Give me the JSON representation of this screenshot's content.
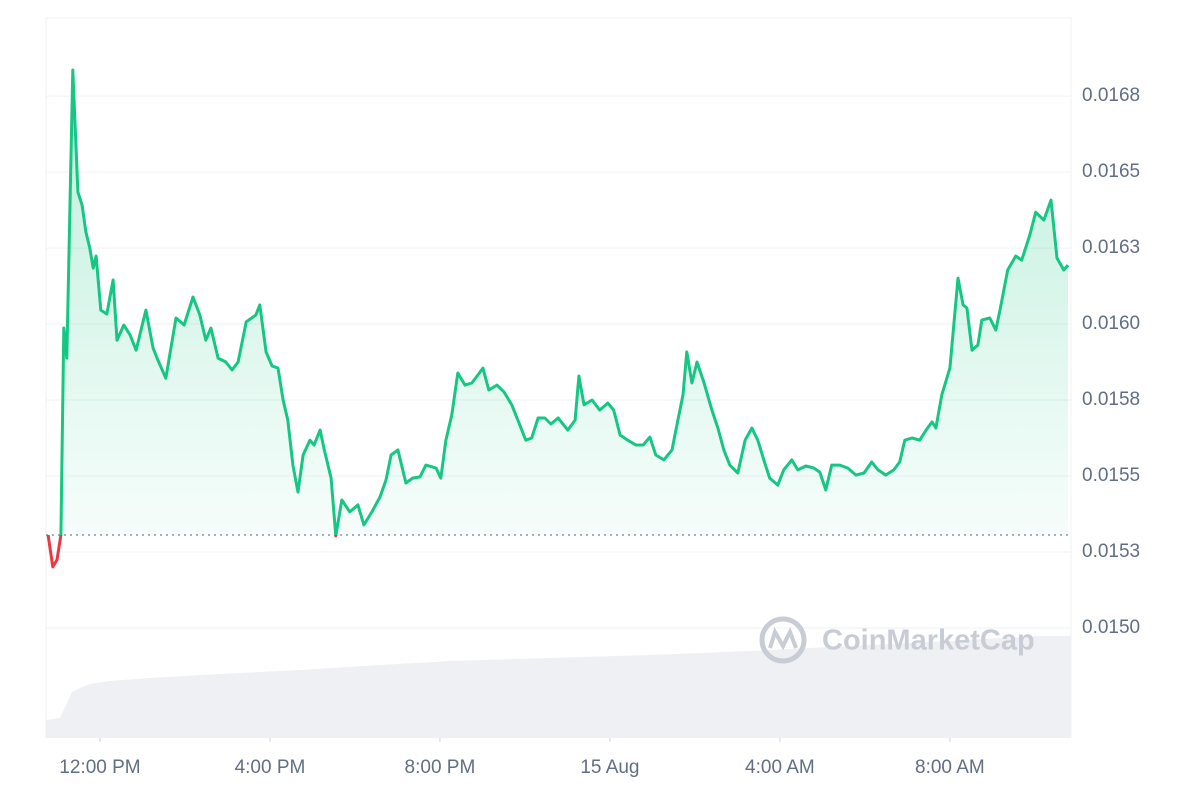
{
  "chart_data": {
    "type": "line",
    "watermark": "CoinMarketCap",
    "x": [
      -1.22,
      -1.11,
      -1.01,
      -0.92,
      -0.85,
      -0.78,
      -0.64,
      -0.52,
      -0.42,
      -0.33,
      -0.24,
      -0.16,
      -0.09,
      0.02,
      0.16,
      0.31,
      0.4,
      0.56,
      0.71,
      0.85,
      1.08,
      1.25,
      1.36,
      1.55,
      1.79,
      1.98,
      2.19,
      2.35,
      2.49,
      2.61,
      2.78,
      2.96,
      3.11,
      3.25,
      3.44,
      3.67,
      3.76,
      3.91,
      4.05,
      4.19,
      4.31,
      4.42,
      4.54,
      4.66,
      4.78,
      4.94,
      5.04,
      5.18,
      5.27,
      5.44,
      5.55,
      5.69,
      5.88,
      6.07,
      6.21,
      6.4,
      6.59,
      6.73,
      6.85,
      7.01,
      7.2,
      7.36,
      7.53,
      7.67,
      7.91,
      8.02,
      8.14,
      8.28,
      8.42,
      8.59,
      8.75,
      8.89,
      9.01,
      9.15,
      9.34,
      9.51,
      9.69,
      9.88,
      10.02,
      10.16,
      10.31,
      10.47,
      10.61,
      10.78,
      11.01,
      11.18,
      11.27,
      11.39,
      11.58,
      11.76,
      11.95,
      12.09,
      12.24,
      12.42,
      12.61,
      12.78,
      12.94,
      13.08,
      13.27,
      13.46,
      13.6,
      13.72,
      13.81,
      13.93,
      14.05,
      14.21,
      14.4,
      14.54,
      14.68,
      14.82,
      15.01,
      15.18,
      15.34,
      15.48,
      15.62,
      15.76,
      15.95,
      16.09,
      16.28,
      16.42,
      16.61,
      16.8,
      16.94,
      17.08,
      17.22,
      17.41,
      17.6,
      17.79,
      17.98,
      18.16,
      18.31,
      18.49,
      18.68,
      18.82,
      18.94,
      19.11,
      19.29,
      19.44,
      19.58,
      19.67,
      19.81,
      20.0,
      20.19,
      20.31,
      20.4,
      20.52,
      20.66,
      20.75,
      20.94,
      21.08,
      21.18,
      21.36,
      21.55,
      21.69,
      21.88,
      22.02,
      22.21,
      22.38,
      22.52,
      22.68,
      22.78
    ],
    "series": [
      {
        "color": "#16c784",
        "below_color": "#ea3943",
        "values": [
          0.015306,
          0.015201,
          0.015224,
          0.015306,
          0.015987,
          0.015888,
          0.016836,
          0.016434,
          0.016391,
          0.016303,
          0.01625,
          0.016184,
          0.016224,
          0.016046,
          0.016033,
          0.016145,
          0.015947,
          0.015997,
          0.015964,
          0.015914,
          0.016046,
          0.015921,
          0.015882,
          0.015822,
          0.01602,
          0.015997,
          0.016089,
          0.01603,
          0.015947,
          0.015987,
          0.015888,
          0.015875,
          0.015849,
          0.015875,
          0.016007,
          0.01603,
          0.016063,
          0.015908,
          0.015862,
          0.015855,
          0.01575,
          0.015684,
          0.015536,
          0.015447,
          0.015569,
          0.015618,
          0.015602,
          0.015651,
          0.015592,
          0.015493,
          0.015303,
          0.015421,
          0.015382,
          0.015405,
          0.015339,
          0.015382,
          0.015431,
          0.015487,
          0.015569,
          0.015586,
          0.015477,
          0.015493,
          0.015497,
          0.015536,
          0.015526,
          0.015493,
          0.015618,
          0.015701,
          0.015839,
          0.015799,
          0.015806,
          0.015832,
          0.015855,
          0.015783,
          0.015799,
          0.015776,
          0.015734,
          0.015668,
          0.015618,
          0.015625,
          0.015691,
          0.015691,
          0.015671,
          0.015691,
          0.015651,
          0.015684,
          0.015829,
          0.015734,
          0.01575,
          0.015717,
          0.01574,
          0.015717,
          0.015635,
          0.015618,
          0.015602,
          0.015602,
          0.015628,
          0.015569,
          0.015553,
          0.015586,
          0.015684,
          0.015767,
          0.015908,
          0.015806,
          0.015875,
          0.015809,
          0.015717,
          0.015658,
          0.015586,
          0.015536,
          0.01551,
          0.015618,
          0.015658,
          0.015618,
          0.015553,
          0.015493,
          0.01547,
          0.01552,
          0.015553,
          0.01552,
          0.015533,
          0.015526,
          0.015513,
          0.015454,
          0.015536,
          0.015536,
          0.015526,
          0.015503,
          0.01551,
          0.015546,
          0.01552,
          0.015503,
          0.01552,
          0.015546,
          0.015618,
          0.015625,
          0.015618,
          0.015651,
          0.015678,
          0.015658,
          0.015767,
          0.015855,
          0.016151,
          0.016063,
          0.016053,
          0.015914,
          0.015931,
          0.016013,
          0.01602,
          0.01598,
          0.016046,
          0.016178,
          0.016224,
          0.01621,
          0.016293,
          0.016368,
          0.016342,
          0.016408,
          0.016217,
          0.016178,
          0.016194
        ]
      }
    ],
    "baseline": 0.015306,
    "xlim": [
      -1.27,
      22.85
    ],
    "ylim": [
      0.014638,
      0.017007
    ],
    "xticks": [
      {
        "value": 0,
        "label": "12:00 PM"
      },
      {
        "value": 4,
        "label": "4:00 PM"
      },
      {
        "value": 8,
        "label": "8:00 PM"
      },
      {
        "value": 12,
        "label": "15 Aug"
      },
      {
        "value": 16,
        "label": "4:00 AM"
      },
      {
        "value": 20,
        "label": "8:00 AM"
      }
    ],
    "yticks": [
      {
        "value": 0.015,
        "label": "0.0150"
      },
      {
        "value": 0.01525,
        "label": "0.0153"
      },
      {
        "value": 0.0155,
        "label": "0.0155"
      },
      {
        "value": 0.01575,
        "label": "0.0158"
      },
      {
        "value": 0.016,
        "label": "0.0160"
      },
      {
        "value": 0.01625,
        "label": "0.0163"
      },
      {
        "value": 0.0165,
        "label": "0.0165"
      },
      {
        "value": 0.01675,
        "label": "0.0168"
      }
    ],
    "grid": true
  }
}
